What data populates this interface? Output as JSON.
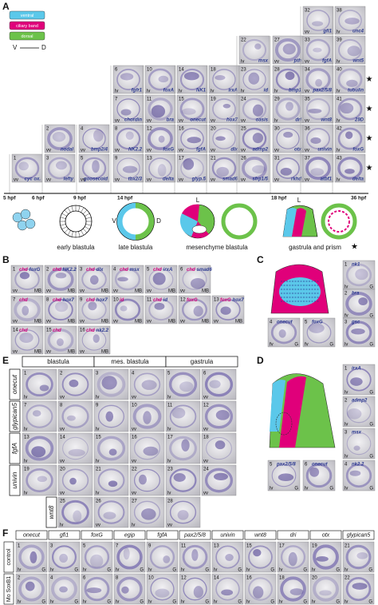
{
  "panel_a": {
    "letter": "A",
    "legend": [
      "ventral",
      "ciliary band",
      "dorsal"
    ],
    "axis": {
      "v": "V",
      "d": "D"
    },
    "tiles": [
      {
        "n": 1,
        "gene": "cyc ox.",
        "view": "vv"
      },
      {
        "n": 2,
        "gene": "nodal",
        "view": "vv"
      },
      {
        "n": 3,
        "gene": "lefty",
        "view": "vv"
      },
      {
        "n": 4,
        "gene": "bmp2/4",
        "view": "vv"
      },
      {
        "n": 5,
        "gene": "goosecoid",
        "view": "vv"
      },
      {
        "n": 6,
        "gene": "fgfr1",
        "view": "lv"
      },
      {
        "n": 7,
        "gene": "chordin",
        "view": "vv"
      },
      {
        "n": 8,
        "gene": "NK2.2",
        "view": "vv"
      },
      {
        "n": 9,
        "gene": "tbx2/3",
        "view": "vv"
      },
      {
        "n": 10,
        "gene": "foxA",
        "view": "lv"
      },
      {
        "n": 11,
        "gene": "bra",
        "view": "vv"
      },
      {
        "n": 12,
        "gene": "foxG",
        "view": "vv"
      },
      {
        "n": 13,
        "gene": "delta",
        "view": "vv"
      },
      {
        "n": 14,
        "gene": "NK1",
        "view": "lv"
      },
      {
        "n": 15,
        "gene": "onecut",
        "view": "vv"
      },
      {
        "n": 16,
        "gene": "fgfA",
        "view": "vv"
      },
      {
        "n": 17,
        "gene": "glyp.5",
        "view": "vv"
      },
      {
        "n": 18,
        "gene": "irxA",
        "view": "lv"
      },
      {
        "n": 19,
        "gene": "hox7",
        "view": "vv"
      },
      {
        "n": 20,
        "gene": "dlx",
        "view": "vv"
      },
      {
        "n": 21,
        "gene": "smad6",
        "view": "vv"
      },
      {
        "n": 22,
        "gene": "msx",
        "view": "lv"
      },
      {
        "n": 23,
        "gene": "id",
        "view": "lv"
      },
      {
        "n": 24,
        "gene": "oasis",
        "view": "vv"
      },
      {
        "n": 25,
        "gene": "admp2",
        "view": "vv"
      },
      {
        "n": 26,
        "gene": "sfrp1/5",
        "view": "vv"
      },
      {
        "n": 27,
        "gene": "pth",
        "view": "vv"
      },
      {
        "n": 28,
        "gene": "bmp1",
        "view": "lv"
      },
      {
        "n": 29,
        "gene": "dri",
        "view": "lv"
      },
      {
        "n": 30,
        "gene": "otx",
        "view": "vv"
      },
      {
        "n": 31,
        "gene": "rkhd",
        "view": "vv"
      },
      {
        "n": 32,
        "gene": "gfi1",
        "view": "vv"
      },
      {
        "n": 33,
        "gene": "fgfA",
        "view": "vv"
      },
      {
        "n": 34,
        "gene": "pax2/5/8",
        "view": "vv"
      },
      {
        "n": 35,
        "gene": "wnt8",
        "view": "vv"
      },
      {
        "n": 36,
        "gene": "univin",
        "view": "vv"
      },
      {
        "n": 37,
        "gene": "atbf1",
        "view": "vv"
      },
      {
        "n": 38,
        "gene": "unc4",
        "view": "lv"
      },
      {
        "n": 39,
        "gene": "wnt5",
        "view": "lv"
      },
      {
        "n": 40,
        "gene": "tubulin",
        "view": "lv",
        "star": true
      },
      {
        "n": 41,
        "gene": "29D",
        "view": "lv",
        "star": true
      },
      {
        "n": 42,
        "gene": "foxG",
        "view": "lv",
        "star": true
      },
      {
        "n": 43,
        "gene": "delta",
        "view": "lv",
        "star": true
      }
    ],
    "timeline": [
      "5 hpf",
      "6 hpf",
      "9 hpf",
      "14 hpf",
      "18 hpf",
      "36 hpf"
    ],
    "stages": [
      "early blastula",
      "late blastula",
      "mesenchyme blastula",
      "gastrula and prism"
    ],
    "diagram_labels": {
      "v": "V",
      "d": "D",
      "l": "L"
    }
  },
  "panel_b": {
    "letter": "B",
    "rows": [
      [
        {
          "n": 1,
          "genes": [
            "chd",
            "foxG"
          ],
          "view": "vv",
          "stage": "MB"
        },
        {
          "n": 2,
          "genes": [
            "chd",
            "NK2.2"
          ],
          "view": "vv",
          "stage": "MB"
        },
        {
          "n": 3,
          "genes": [
            "chd",
            "dlx"
          ],
          "view": "vv",
          "stage": "MB"
        },
        {
          "n": 4,
          "genes": [
            "chd",
            "msx"
          ],
          "view": "vv",
          "stage": "MB"
        },
        {
          "n": 5,
          "genes": [
            "chd",
            "irxA"
          ],
          "view": "vv",
          "stage": "MB"
        },
        {
          "n": 6,
          "genes": [
            "chd",
            "smad6"
          ],
          "view": "vv",
          "stage": "MB"
        }
      ],
      [
        {
          "n": 7,
          "genes": [
            "chd"
          ],
          "view": "vv",
          "stage": "MB"
        },
        {
          "n": 8,
          "genes": [
            "chd",
            "hox7"
          ],
          "view": "vv",
          "stage": "MB"
        },
        {
          "n": 9,
          "genes": [
            "chd",
            "hox7"
          ],
          "view": "vv",
          "stage": "MB"
        },
        {
          "n": 10,
          "genes": [
            "id"
          ],
          "view": "vv",
          "stage": "MB"
        },
        {
          "n": 11,
          "genes": [
            "chd",
            "id"
          ],
          "view": "vv",
          "stage": "MB"
        },
        {
          "n": 12,
          "genes": [
            "foxG"
          ],
          "view": "vv",
          "stage": "MB"
        },
        {
          "n": 13,
          "genes": [
            "foxG",
            "hox7"
          ],
          "view": "vv",
          "stage": "MB"
        }
      ],
      [
        {
          "n": 14,
          "genes": [
            "chd"
          ],
          "view": "vv",
          "stage": "MB"
        },
        {
          "n": 15,
          "genes": [
            "chd"
          ],
          "view": "vv",
          "stage": "MB"
        },
        {
          "n": 16,
          "genes": [
            "chd",
            "nk2.2"
          ],
          "view": "vv",
          "stage": "MB"
        }
      ]
    ]
  },
  "panel_c": {
    "letter": "C",
    "tiles": [
      {
        "n": 1,
        "gene": "nk1",
        "view": "lv",
        "stage": "G"
      },
      {
        "n": 2,
        "gene": "bra",
        "view": "fv",
        "stage": "G"
      },
      {
        "n": 3,
        "gene": "gsc",
        "view": "lv",
        "stage": "G"
      },
      {
        "n": 4,
        "gene": "onecut",
        "view": "fv",
        "stage": "G"
      },
      {
        "n": 5,
        "gene": "foxG",
        "view": "fv",
        "stage": "G"
      }
    ]
  },
  "panel_d": {
    "letter": "D",
    "tiles": [
      {
        "n": 1,
        "gene": "irxA",
        "view": "lv",
        "stage": "G"
      },
      {
        "n": 2,
        "gene": "admp2",
        "view": "lv",
        "stage": "G"
      },
      {
        "n": 3,
        "gene": "msx",
        "view": "lv",
        "stage": "G"
      },
      {
        "n": 4,
        "gene": "nk2.2",
        "view": "lv",
        "stage": "G"
      },
      {
        "n": 5,
        "gene": "pax2/5/8",
        "view": "lv",
        "stage": "G"
      },
      {
        "n": 6,
        "gene": "onecut",
        "view": "lv",
        "stage": "G"
      }
    ]
  },
  "panel_e": {
    "letter": "E",
    "headers": [
      "blastula",
      "mes. blastula",
      "gastrula"
    ],
    "rows": [
      {
        "label": "onecut",
        "tiles": [
          {
            "n": 1,
            "view": "lv"
          },
          {
            "n": 2,
            "view": "vv"
          },
          {
            "n": 3,
            "view": "lv"
          },
          {
            "n": 4,
            "view": "vv"
          },
          {
            "n": 5,
            "view": "lv"
          },
          {
            "n": 6,
            "view": "vv"
          }
        ]
      },
      {
        "label": "glypican5",
        "tiles": [
          {
            "n": 7,
            "view": "lv"
          },
          {
            "n": 8,
            "view": "vv"
          },
          {
            "n": 9,
            "view": "lv"
          },
          {
            "n": 10,
            "view": "vv"
          },
          {
            "n": 11,
            "view": "lv"
          },
          {
            "n": 12,
            "view": "vv"
          }
        ]
      },
      {
        "label": "fgfA",
        "tiles": [
          {
            "n": 13,
            "view": "lv"
          },
          {
            "n": 14,
            "view": "vv"
          },
          {
            "n": 15,
            "view": "lv"
          },
          {
            "n": 16,
            "view": "vv"
          },
          {
            "n": 17,
            "view": "lv"
          },
          {
            "n": 18,
            "view": "vv"
          }
        ]
      },
      {
        "label": "univin",
        "tiles": [
          {
            "n": 19,
            "view": "lv"
          },
          {
            "n": 20,
            "view": "vv"
          },
          {
            "n": 21,
            "view": "lv"
          },
          {
            "n": 22,
            "view": "vv"
          },
          {
            "n": 23,
            "view": "lv"
          },
          {
            "n": 24,
            "view": "vv"
          }
        ]
      },
      {
        "label": "wnt8",
        "tiles": [
          {
            "n": 25,
            "view": "lv"
          },
          {
            "n": 26,
            "view": "vv"
          },
          {
            "n": 27,
            "view": "lv"
          },
          {
            "n": 28,
            "view": "vv"
          }
        ]
      }
    ]
  },
  "panel_f": {
    "letter": "F",
    "genes": [
      "onecut",
      "gfi1",
      "foxG",
      "egip",
      "fgfA",
      "pax2/5/8",
      "univin",
      "wnt8",
      "dri",
      "otx",
      "glypican5"
    ],
    "rows": [
      {
        "label": "control",
        "tiles": [
          {
            "n": 1,
            "view": "lv",
            "stage": "G"
          },
          {
            "n": 3,
            "view": "lv",
            "stage": "G"
          },
          {
            "n": 5,
            "view": "lv",
            "stage": "G"
          },
          {
            "n": 7,
            "view": "lv",
            "stage": "G"
          },
          {
            "n": 9,
            "view": "lv",
            "stage": "G"
          },
          {
            "n": 11,
            "view": "lv",
            "stage": "G"
          },
          {
            "n": 13,
            "view": "lv",
            "stage": "G"
          },
          {
            "n": 15,
            "view": "lv",
            "stage": "G"
          },
          {
            "n": 17,
            "view": "lv",
            "stage": "G"
          },
          {
            "n": 19,
            "view": "lv",
            "stage": "G"
          },
          {
            "n": 21,
            "view": "lv",
            "stage": "G"
          }
        ]
      },
      {
        "label": "Mo SoxB1",
        "tiles": [
          {
            "n": 2,
            "view": "lv",
            "stage": "G"
          },
          {
            "n": 4,
            "view": "lv",
            "stage": "G"
          },
          {
            "n": 6,
            "view": "lv",
            "stage": "G"
          },
          {
            "n": 8,
            "view": "lv",
            "stage": "G"
          },
          {
            "n": 10,
            "view": "lv",
            "stage": "G"
          },
          {
            "n": 12,
            "view": "lv",
            "stage": "G"
          },
          {
            "n": 14,
            "view": "lv",
            "stage": "G"
          },
          {
            "n": 16,
            "view": "lv",
            "stage": "G"
          },
          {
            "n": 18,
            "view": "lv",
            "stage": "G"
          },
          {
            "n": 20,
            "view": "lv",
            "stage": "G"
          },
          {
            "n": 22,
            "view": "lv",
            "stage": "G"
          }
        ]
      }
    ]
  }
}
